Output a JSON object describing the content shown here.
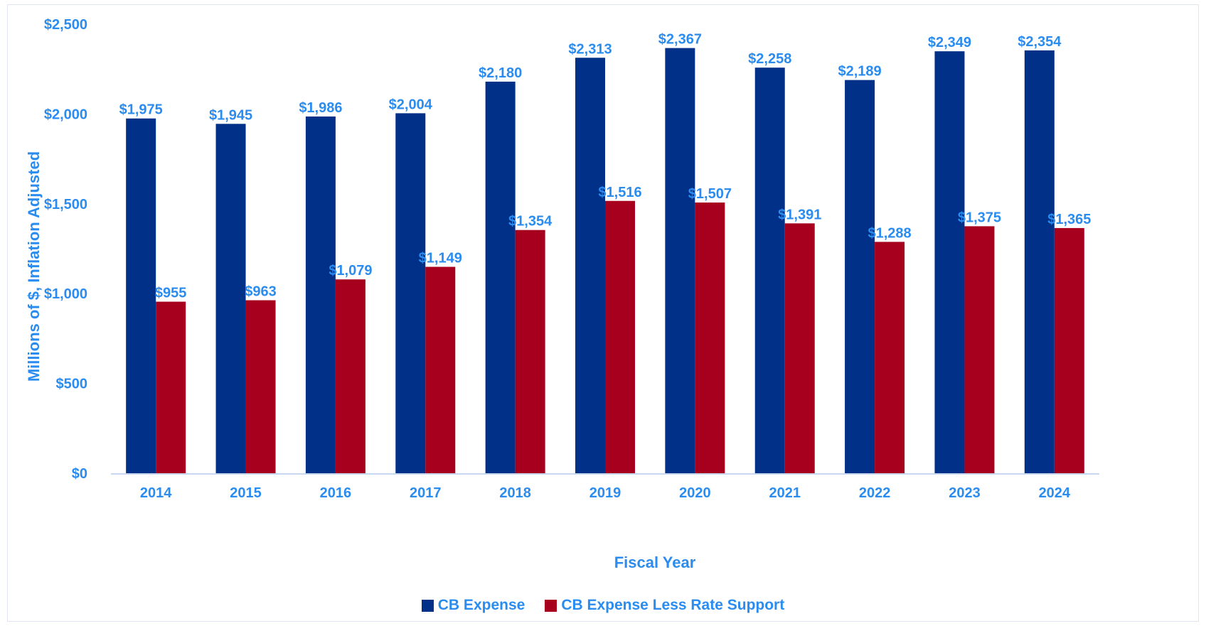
{
  "chart_data": {
    "type": "bar",
    "xlabel": "Fiscal Year",
    "ylabel": "Millions of $, Inflation Adjusted",
    "ylim": [
      0,
      2500
    ],
    "yticks": [
      0,
      500,
      1000,
      1500,
      2000,
      2500
    ],
    "ytick_labels": [
      "$0",
      "$500",
      "$1,000",
      "$1,500",
      "$2,000",
      "$2,500"
    ],
    "categories": [
      "2014",
      "2015",
      "2016",
      "2017",
      "2018",
      "2019",
      "2020",
      "2021",
      "2022",
      "2023",
      "2024"
    ],
    "series": [
      {
        "name": "CB Expense",
        "color": "#003087",
        "values": [
          1975,
          1945,
          1986,
          2004,
          2180,
          2313,
          2367,
          2258,
          2189,
          2349,
          2354
        ],
        "labels": [
          "$1,975",
          "$1,945",
          "$1,986",
          "$2,004",
          "$2,180",
          "$2,313",
          "$2,367",
          "$2,258",
          "$2,189",
          "$2,349",
          "$2,354"
        ]
      },
      {
        "name": "CB Expense Less Rate Support",
        "color": "#a6001e",
        "values": [
          955,
          963,
          1079,
          1149,
          1354,
          1516,
          1507,
          1391,
          1288,
          1375,
          1365
        ],
        "labels": [
          "$955",
          "$963",
          "$1,079",
          "$1,149",
          "$1,354",
          "$1,516",
          "$1,507",
          "$1,391",
          "$1,288",
          "$1,375",
          "$1,365"
        ]
      }
    ],
    "grid": false,
    "legend_position": "bottom"
  }
}
